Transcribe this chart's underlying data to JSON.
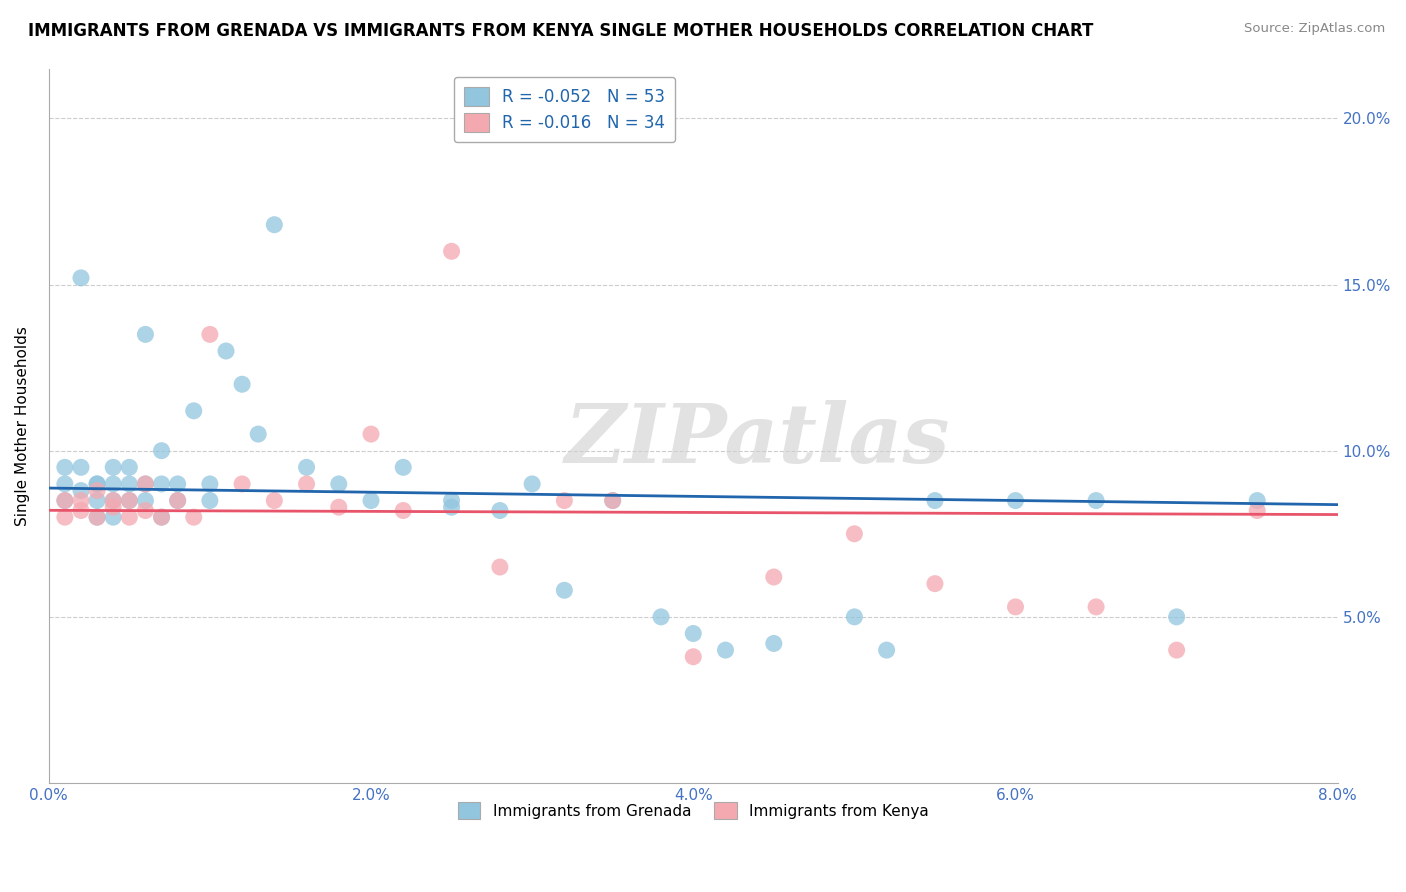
{
  "title": "IMMIGRANTS FROM GRENADA VS IMMIGRANTS FROM KENYA SINGLE MOTHER HOUSEHOLDS CORRELATION CHART",
  "source": "Source: ZipAtlas.com",
  "ylabel": "Single Mother Households",
  "xlim": [
    0.0,
    0.08
  ],
  "ylim": [
    0.0,
    0.215
  ],
  "grenada_color": "#92c5de",
  "kenya_color": "#f4a9b0",
  "grenada_line_color": "#2166ac",
  "kenya_line_color": "#e8546a",
  "watermark": "ZIPatlas",
  "legend_grenada": "R = -0.052   N = 53",
  "legend_kenya": "R = -0.016   N = 34",
  "legend_label_grenada": "Immigrants from Grenada",
  "legend_label_kenya": "Immigrants from Kenya",
  "grenada_R": -0.052,
  "kenya_R": -0.016,
  "title_fontsize": 12,
  "tick_color": "#4472c4",
  "background_color": "#ffffff",
  "grid_color": "#cccccc",
  "grenada_x": [
    0.001,
    0.001,
    0.001,
    0.002,
    0.002,
    0.002,
    0.003,
    0.003,
    0.003,
    0.003,
    0.004,
    0.004,
    0.004,
    0.004,
    0.005,
    0.005,
    0.005,
    0.006,
    0.006,
    0.006,
    0.007,
    0.007,
    0.007,
    0.008,
    0.008,
    0.009,
    0.01,
    0.01,
    0.011,
    0.012,
    0.013,
    0.014,
    0.016,
    0.018,
    0.02,
    0.022,
    0.025,
    0.025,
    0.028,
    0.03,
    0.032,
    0.035,
    0.038,
    0.04,
    0.042,
    0.045,
    0.05,
    0.052,
    0.055,
    0.06,
    0.065,
    0.07,
    0.075
  ],
  "grenada_y": [
    0.095,
    0.085,
    0.09,
    0.152,
    0.095,
    0.088,
    0.09,
    0.085,
    0.09,
    0.08,
    0.095,
    0.085,
    0.09,
    0.08,
    0.09,
    0.085,
    0.095,
    0.085,
    0.09,
    0.135,
    0.08,
    0.09,
    0.1,
    0.085,
    0.09,
    0.112,
    0.09,
    0.085,
    0.13,
    0.12,
    0.105,
    0.168,
    0.095,
    0.09,
    0.085,
    0.095,
    0.085,
    0.083,
    0.082,
    0.09,
    0.058,
    0.085,
    0.05,
    0.045,
    0.04,
    0.042,
    0.05,
    0.04,
    0.085,
    0.085,
    0.085,
    0.05,
    0.085
  ],
  "kenya_x": [
    0.001,
    0.001,
    0.002,
    0.002,
    0.003,
    0.003,
    0.004,
    0.004,
    0.005,
    0.005,
    0.006,
    0.006,
    0.007,
    0.008,
    0.009,
    0.01,
    0.012,
    0.014,
    0.016,
    0.018,
    0.02,
    0.022,
    0.025,
    0.028,
    0.032,
    0.035,
    0.04,
    0.045,
    0.05,
    0.055,
    0.06,
    0.065,
    0.07,
    0.075
  ],
  "kenya_y": [
    0.085,
    0.08,
    0.082,
    0.085,
    0.088,
    0.08,
    0.083,
    0.085,
    0.08,
    0.085,
    0.082,
    0.09,
    0.08,
    0.085,
    0.08,
    0.135,
    0.09,
    0.085,
    0.09,
    0.083,
    0.105,
    0.082,
    0.16,
    0.065,
    0.085,
    0.085,
    0.038,
    0.062,
    0.075,
    0.06,
    0.053,
    0.053,
    0.04,
    0.082
  ]
}
